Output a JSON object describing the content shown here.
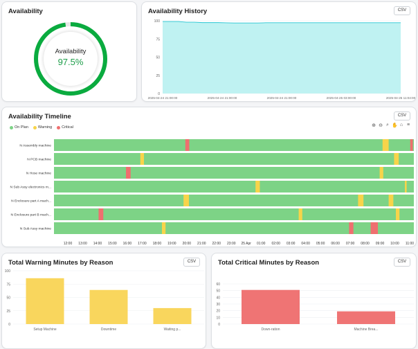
{
  "availability": {
    "title": "Availability",
    "label": "Availability",
    "value_text": "97.5%",
    "percent": 97.5,
    "ring_color": "#0aab3f"
  },
  "history": {
    "title": "Availability History",
    "csv_label": "CSV",
    "y_ticks": [
      "100",
      "75",
      "50",
      "25",
      "0"
    ],
    "x_ticks": [
      "2025-04-24 21:00:00",
      "2025-04-24 21:00:00",
      "2025-04-24 21:00:00",
      "2025-04-25 03:00:00",
      "2025-04-25 11:04:00"
    ],
    "fill_color": "#bff2f2",
    "line_color": "#28c6d3",
    "chart_data": {
      "type": "area",
      "ylim": [
        0,
        100
      ],
      "values": [
        99,
        99,
        99,
        98,
        98,
        97.5,
        97.5,
        97.5,
        97.2,
        97,
        97,
        97,
        97,
        97.3,
        97.3,
        97.3,
        97.3,
        97.3,
        97.3,
        97.3,
        97.3,
        97.3,
        97.3,
        97.3,
        97.3,
        97.3,
        97.3,
        97.3,
        97.3,
        97.3,
        97.3
      ]
    }
  },
  "timeline": {
    "title": "Availability Timeline",
    "csv_label": "CSV",
    "legend": [
      {
        "label": "On Plan",
        "color": "#7dd386"
      },
      {
        "label": "Warning",
        "color": "#f7d44a"
      },
      {
        "label": "Critical",
        "color": "#ef6f6f"
      }
    ],
    "tool_icons": [
      "zoom-in-icon",
      "zoom-out-icon",
      "magnify-icon",
      "pan-icon",
      "home-icon",
      "menu-icon"
    ],
    "x_ticks": [
      "12:00",
      "13:00",
      "14:00",
      "15:00",
      "16:00",
      "17:00",
      "18:00",
      "19:00",
      "20:00",
      "21:00",
      "22:00",
      "23:00",
      "25 Apr",
      "01:00",
      "02:00",
      "03:00",
      "04:00",
      "05:00",
      "06:00",
      "07:00",
      "08:00",
      "09:00",
      "10:00",
      "11:00"
    ],
    "chart_data": {
      "type": "timeline",
      "rows": [
        {
          "label": "N Assembly machine",
          "events": [
            {
              "start": 0.365,
              "end": 0.376,
              "status": "Critical"
            },
            {
              "start": 0.913,
              "end": 0.93,
              "status": "Warning"
            },
            {
              "start": 0.99,
              "end": 0.997,
              "status": "Critical"
            }
          ]
        },
        {
          "label": "N PCB machine",
          "events": [
            {
              "start": 0.24,
              "end": 0.25,
              "status": "Warning"
            },
            {
              "start": 0.945,
              "end": 0.958,
              "status": "Warning"
            }
          ]
        },
        {
          "label": "N Hose machine",
          "events": [
            {
              "start": 0.2,
              "end": 0.213,
              "status": "Critical"
            },
            {
              "start": 0.905,
              "end": 0.915,
              "status": "Warning"
            }
          ]
        },
        {
          "label": "N Sub Assy electronics m...",
          "events": [
            {
              "start": 0.56,
              "end": 0.572,
              "status": "Warning"
            },
            {
              "start": 0.975,
              "end": 0.98,
              "status": "Warning"
            }
          ]
        },
        {
          "label": "N Enclosure part A mach...",
          "events": [
            {
              "start": 0.36,
              "end": 0.375,
              "status": "Warning"
            },
            {
              "start": 0.845,
              "end": 0.86,
              "status": "Warning"
            },
            {
              "start": 0.93,
              "end": 0.943,
              "status": "Warning"
            }
          ]
        },
        {
          "label": "N Enclosure part B mach...",
          "events": [
            {
              "start": 0.124,
              "end": 0.137,
              "status": "Critical"
            },
            {
              "start": 0.68,
              "end": 0.69,
              "status": "Warning"
            },
            {
              "start": 0.95,
              "end": 0.96,
              "status": "Warning"
            }
          ]
        },
        {
          "label": "N Sub Assy machine",
          "events": [
            {
              "start": 0.3,
              "end": 0.31,
              "status": "Warning"
            },
            {
              "start": 0.82,
              "end": 0.832,
              "status": "Critical"
            },
            {
              "start": 0.88,
              "end": 0.9,
              "status": "Critical"
            }
          ]
        }
      ]
    }
  },
  "warning": {
    "title": "Total Warning Minutes by Reason",
    "csv_label": "CSV",
    "color": "#f9d65d",
    "y_ticks": [
      "100",
      "75",
      "50",
      "25",
      "0"
    ],
    "chart_data": {
      "type": "bar",
      "categories": [
        "Setup Machine",
        "Downtime",
        "Waiting p..."
      ],
      "values": [
        86,
        64,
        30
      ],
      "ylim": [
        0,
        100
      ]
    }
  },
  "critical": {
    "title": "Total Critical Minutes by Reason",
    "csv_label": "CSV",
    "color": "#ef7474",
    "y_ticks": [
      "60",
      "50",
      "40",
      "30",
      "20",
      "10",
      "0"
    ],
    "chart_data": {
      "type": "bar",
      "categories": [
        "Down-ration",
        "Machine Brea..."
      ],
      "values": [
        51,
        19
      ],
      "ylim": [
        0,
        60
      ]
    }
  }
}
